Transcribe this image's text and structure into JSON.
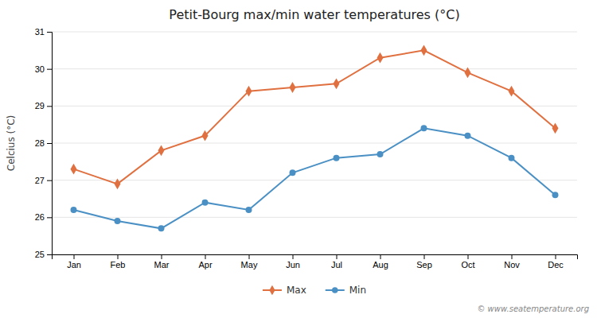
{
  "chart_data": {
    "type": "line",
    "title": "Petit-Bourg max/min water temperatures (°C)",
    "ylabel": "Celcius (°C)",
    "categories": [
      "Jan",
      "Feb",
      "Mar",
      "Apr",
      "May",
      "Jun",
      "Jul",
      "Aug",
      "Sep",
      "Oct",
      "Nov",
      "Dec"
    ],
    "series": [
      {
        "name": "Max",
        "color": "#e07040",
        "marker": "diamond",
        "values": [
          27.3,
          26.9,
          27.8,
          28.2,
          29.4,
          29.5,
          29.6,
          30.3,
          30.5,
          29.9,
          29.4,
          28.4
        ]
      },
      {
        "name": "Min",
        "color": "#4a90c4",
        "marker": "circle",
        "values": [
          26.2,
          25.9,
          25.7,
          26.4,
          26.2,
          27.2,
          27.6,
          27.7,
          28.4,
          28.2,
          27.6,
          26.6
        ]
      }
    ],
    "ylim": [
      25,
      31
    ],
    "yticks": [
      25,
      26,
      27,
      28,
      29,
      30,
      31
    ],
    "grid": true,
    "legend": "bottom",
    "annotations": [
      "© www.seatemperature.org"
    ]
  }
}
